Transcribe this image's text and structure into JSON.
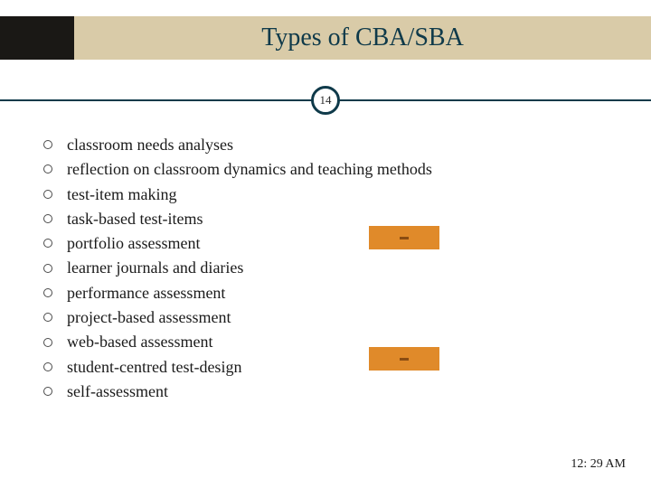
{
  "colors": {
    "header_dark": "#1a1815",
    "header_tan": "#d9cba8",
    "title_text": "#0f3a4a",
    "divider": "#0f3a4a",
    "badge_border": "#0f3a4a",
    "badge_text": "#2a2a2a",
    "bullet_border": "#4a4a4a",
    "bullet_text": "#1a1a1a",
    "orange_fill": "#e08a2a",
    "orange_dash": "#8a4c12",
    "timestamp_text": "#1a1a1a",
    "background": "#ffffff"
  },
  "layout": {
    "slide_width": 720,
    "slide_height": 540,
    "title_fontsize": 28,
    "bullet_fontsize": 18,
    "orange_block_width": 78,
    "orange_block_height": 26,
    "orange_block_left": 408,
    "orange_block_top_1": 250,
    "orange_block_top_2": 384
  },
  "title": "Types of CBA/SBA",
  "slide_number": "14",
  "timestamp": "12: 29 AM",
  "bullets": [
    "classroom needs analyses",
    "reflection on classroom dynamics and teaching methods",
    "test-item making",
    "task-based test-items",
    "portfolio assessment",
    "learner journals and diaries",
    "performance assessment",
    "project-based assessment",
    "web-based assessment",
    "student-centred test-design",
    "self-assessment"
  ]
}
